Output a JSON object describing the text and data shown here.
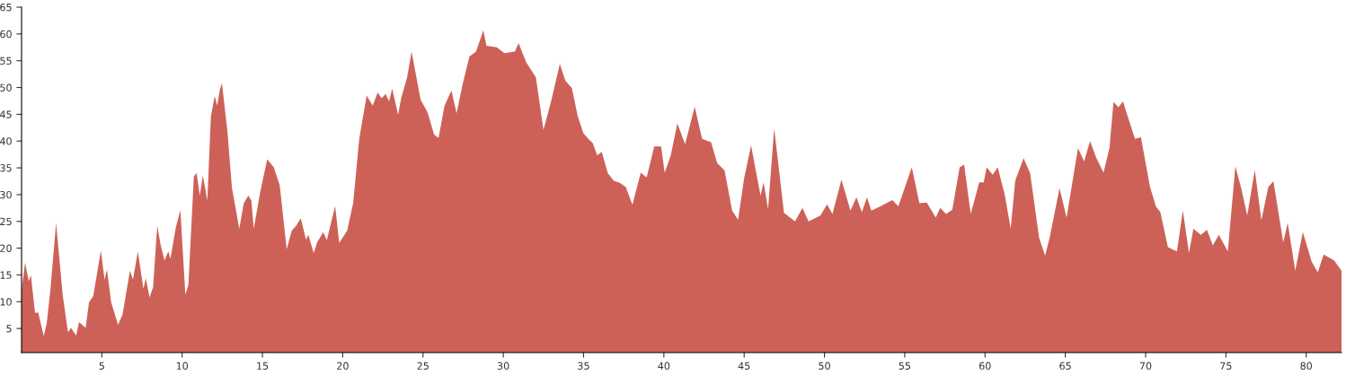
{
  "chart_data": {
    "type": "area",
    "xlim": [
      0,
      82.2
    ],
    "ylim": [
      0.5,
      65
    ],
    "xticks": [
      5,
      10,
      15,
      20,
      25,
      30,
      35,
      40,
      45,
      50,
      55,
      60,
      65,
      70,
      75,
      80
    ],
    "yticks": [
      5,
      10,
      15,
      20,
      25,
      30,
      35,
      40,
      45,
      50,
      55,
      60,
      65
    ],
    "grid": false,
    "legend": false,
    "series": [
      {
        "color": "#cd6158",
        "x": [
          0,
          0.22,
          0.45,
          0.58,
          0.84,
          1.03,
          1.38,
          1.57,
          1.81,
          2.15,
          2.56,
          2.89,
          3.08,
          3.4,
          3.58,
          3.99,
          4.2,
          4.46,
          4.94,
          5.17,
          5.32,
          5.58,
          6.01,
          6.29,
          6.75,
          6.94,
          7.24,
          7.59,
          7.74,
          7.97,
          8.19,
          8.45,
          8.66,
          8.9,
          9.14,
          9.27,
          9.61,
          9.89,
          10.2,
          10.39,
          10.73,
          10.9,
          11.1,
          11.29,
          11.57,
          11.79,
          12.03,
          12.18,
          12.35,
          12.48,
          12.82,
          13.1,
          13.56,
          13.84,
          14.12,
          14.31,
          14.46,
          14.87,
          15.3,
          15.71,
          16.08,
          16.51,
          16.83,
          17.11,
          17.39,
          17.71,
          17.86,
          18.19,
          18.41,
          18.79,
          19.01,
          19.53,
          19.78,
          20.28,
          20.65,
          21.03,
          21.49,
          21.87,
          22.18,
          22.42,
          22.67,
          22.89,
          23.08,
          23.45,
          23.64,
          24.01,
          24.29,
          24.85,
          25.28,
          25.69,
          25.97,
          26.34,
          26.77,
          27.09,
          27.46,
          27.89,
          28.3,
          28.76,
          28.95,
          29.6,
          30.07,
          30.72,
          30.95,
          31.43,
          32.03,
          32.5,
          32.96,
          33.52,
          33.86,
          34.27,
          34.64,
          34.98,
          35.29,
          35.57,
          35.85,
          36.13,
          36.51,
          36.88,
          37.25,
          37.63,
          38.04,
          38.56,
          38.93,
          39.4,
          39.83,
          40.05,
          40.43,
          40.84,
          41.32,
          41.92,
          42.38,
          42.94,
          43.32,
          43.78,
          44.25,
          44.62,
          45,
          45.43,
          46.02,
          46.21,
          46.49,
          46.87,
          47.48,
          48.17,
          48.63,
          49.01,
          49.75,
          50.16,
          50.5,
          51.06,
          51.62,
          51.99,
          52.33,
          52.65,
          52.92,
          53.48,
          54.23,
          54.6,
          55.44,
          55.91,
          56.37,
          56.93,
          57.21,
          57.58,
          57.96,
          58.42,
          58.7,
          59.11,
          59.64,
          59.92,
          60.1,
          60.48,
          60.79,
          61.22,
          61.6,
          61.88,
          62.4,
          62.81,
          63.37,
          63.74,
          64.02,
          64.64,
          65.08,
          65.79,
          66.17,
          66.54,
          66.91,
          67.38,
          67.75,
          68,
          68.31,
          68.59,
          68.97,
          69.34,
          69.71,
          70.27,
          70.64,
          70.92,
          71.39,
          71.95,
          72.32,
          72.7,
          72.98,
          73.44,
          73.82,
          74.19,
          74.56,
          75.12,
          75.59,
          75.96,
          76.33,
          76.8,
          77.21,
          77.64,
          77.96,
          78.57,
          78.85,
          79.32,
          79.79,
          80.35,
          80.72,
          81.09,
          81.74,
          82.2
        ],
        "values": [
          12.1,
          17.3,
          13.8,
          15,
          7.9,
          8,
          3.6,
          6,
          12.7,
          24.7,
          11.3,
          4.3,
          5.1,
          3.7,
          6.2,
          5.1,
          9.9,
          11,
          19.5,
          14.1,
          16,
          9.9,
          5.7,
          7.6,
          15.8,
          14.1,
          19.4,
          12.4,
          14.4,
          10.8,
          12.7,
          24.2,
          20.6,
          17.7,
          19.4,
          18,
          23.9,
          27.1,
          11.3,
          13.2,
          33.4,
          34,
          29.8,
          33.6,
          28.9,
          44.6,
          48.4,
          46.6,
          49.6,
          50.8,
          41.8,
          31.3,
          23.6,
          28.4,
          29.8,
          28.9,
          23.6,
          30.6,
          36.6,
          35.1,
          31.7,
          19.8,
          23.3,
          24.2,
          25.6,
          21.6,
          22.5,
          19.1,
          21.1,
          23,
          21.5,
          27.9,
          21,
          23.3,
          28.4,
          40.4,
          48.5,
          46.6,
          49.1,
          48,
          48.8,
          47.4,
          49.8,
          44.9,
          48,
          51.9,
          56.7,
          47.7,
          45.4,
          41.2,
          40.6,
          46.6,
          49.4,
          45.2,
          50.5,
          55.8,
          56.7,
          60.7,
          57.8,
          57.5,
          56.4,
          56.7,
          58.3,
          54.7,
          51.9,
          42.1,
          47.2,
          54.4,
          51.3,
          49.9,
          44.6,
          41.5,
          40.4,
          39.6,
          37.3,
          38,
          34,
          32.6,
          32.2,
          31.4,
          28.1,
          34.1,
          33.2,
          39,
          39,
          34.1,
          37.3,
          43.3,
          39.4,
          46.4,
          40.4,
          39.8,
          35.9,
          34.5,
          27,
          25.3,
          33.1,
          39.2,
          29.8,
          32.3,
          27.3,
          42.4,
          26.6,
          25,
          27.5,
          25,
          26.1,
          28.2,
          26.4,
          32.8,
          27,
          29.5,
          26.7,
          29.5,
          27,
          27.8,
          29,
          27.8,
          35.1,
          28.4,
          28.5,
          25.7,
          27.5,
          26.4,
          27.2,
          35.1,
          35.6,
          26.4,
          32.3,
          32.3,
          35.1,
          33.7,
          35.1,
          30.1,
          23.6,
          32.6,
          36.8,
          34,
          21.9,
          18.6,
          21.9,
          31.2,
          25.7,
          38.7,
          36.2,
          40,
          37,
          34.1,
          38.7,
          47.3,
          46.3,
          47.4,
          43.8,
          40.4,
          40.7,
          31.5,
          27.8,
          26.7,
          20.2,
          19.4,
          27,
          19.1,
          23.6,
          22.5,
          23.4,
          20.5,
          22.5,
          19.4,
          35.3,
          31.1,
          26.1,
          34.6,
          25.2,
          31.4,
          32.5,
          21.1,
          24.7,
          15.8,
          23,
          17.4,
          15.5,
          18.8,
          17.7,
          15.8
        ]
      }
    ]
  }
}
